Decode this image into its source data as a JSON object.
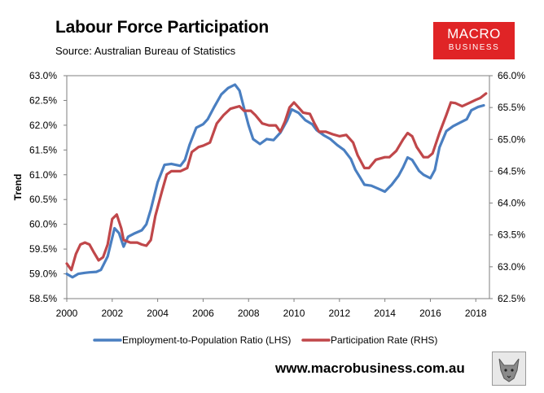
{
  "header": {
    "title": "Labour Force Participation",
    "subtitle": "Source: Australian Bureau of Statistics"
  },
  "logo": {
    "line1": "MACRO",
    "line2": "BUSINESS",
    "color": "#e02426"
  },
  "footer": {
    "url": "www.macrobusiness.com.au",
    "mascot_icon": "wolf-icon"
  },
  "colors": {
    "employment": "#4a7fc1",
    "participation": "#c0474a",
    "axis": "#7f7f7f"
  },
  "chart_data": {
    "type": "line",
    "title": "Labour Force Participation",
    "ylabel": "Trend",
    "x_ticks": [
      "2000",
      "2002",
      "2004",
      "2006",
      "2008",
      "2010",
      "2012",
      "2014",
      "2016",
      "2018"
    ],
    "xlim": [
      2000,
      2018.6
    ],
    "y_left": {
      "lim": [
        58.5,
        63.0
      ],
      "ticks": [
        "58.5%",
        "59.0%",
        "59.5%",
        "60.0%",
        "60.5%",
        "61.0%",
        "61.5%",
        "62.0%",
        "62.5%",
        "63.0%"
      ]
    },
    "y_right": {
      "lim": [
        62.5,
        66.0
      ],
      "ticks": [
        "62.5%",
        "63.0%",
        "63.5%",
        "64.0%",
        "64.5%",
        "65.0%",
        "65.5%",
        "66.0%"
      ]
    },
    "grid": false,
    "legend_position": "bottom",
    "series": [
      {
        "name": "Employment-to-Population Ratio (LHS)",
        "axis": "left",
        "points": [
          [
            2000.0,
            59.0
          ],
          [
            2000.25,
            58.93
          ],
          [
            2000.5,
            59.0
          ],
          [
            2000.8,
            59.02
          ],
          [
            2001.0,
            59.03
          ],
          [
            2001.3,
            59.04
          ],
          [
            2001.5,
            59.08
          ],
          [
            2001.8,
            59.35
          ],
          [
            2002.1,
            59.92
          ],
          [
            2002.3,
            59.82
          ],
          [
            2002.5,
            59.55
          ],
          [
            2002.7,
            59.75
          ],
          [
            2003.0,
            59.82
          ],
          [
            2003.3,
            59.88
          ],
          [
            2003.5,
            60.0
          ],
          [
            2003.7,
            60.3
          ],
          [
            2004.0,
            60.85
          ],
          [
            2004.3,
            61.2
          ],
          [
            2004.6,
            61.22
          ],
          [
            2005.0,
            61.18
          ],
          [
            2005.2,
            61.3
          ],
          [
            2005.4,
            61.6
          ],
          [
            2005.7,
            61.95
          ],
          [
            2006.0,
            62.02
          ],
          [
            2006.2,
            62.12
          ],
          [
            2006.5,
            62.38
          ],
          [
            2006.8,
            62.62
          ],
          [
            2007.1,
            62.75
          ],
          [
            2007.4,
            62.82
          ],
          [
            2007.6,
            62.7
          ],
          [
            2007.8,
            62.35
          ],
          [
            2008.0,
            62.0
          ],
          [
            2008.2,
            61.72
          ],
          [
            2008.5,
            61.62
          ],
          [
            2008.8,
            61.72
          ],
          [
            2009.1,
            61.7
          ],
          [
            2009.4,
            61.85
          ],
          [
            2009.7,
            62.1
          ],
          [
            2009.9,
            62.32
          ],
          [
            2010.2,
            62.25
          ],
          [
            2010.5,
            62.1
          ],
          [
            2010.8,
            62.02
          ],
          [
            2011.0,
            61.9
          ],
          [
            2011.3,
            61.8
          ],
          [
            2011.6,
            61.72
          ],
          [
            2011.9,
            61.6
          ],
          [
            2012.2,
            61.5
          ],
          [
            2012.5,
            61.32
          ],
          [
            2012.7,
            61.1
          ],
          [
            2012.9,
            60.95
          ],
          [
            2013.1,
            60.8
          ],
          [
            2013.4,
            60.78
          ],
          [
            2013.7,
            60.72
          ],
          [
            2014.0,
            60.66
          ],
          [
            2014.3,
            60.8
          ],
          [
            2014.6,
            60.98
          ],
          [
            2014.8,
            61.15
          ],
          [
            2015.0,
            61.35
          ],
          [
            2015.2,
            61.3
          ],
          [
            2015.5,
            61.08
          ],
          [
            2015.7,
            61.0
          ],
          [
            2016.0,
            60.93
          ],
          [
            2016.2,
            61.1
          ],
          [
            2016.4,
            61.55
          ],
          [
            2016.7,
            61.88
          ],
          [
            2017.0,
            61.98
          ],
          [
            2017.3,
            62.05
          ],
          [
            2017.6,
            62.12
          ],
          [
            2017.8,
            62.3
          ],
          [
            2018.1,
            62.37
          ],
          [
            2018.35,
            62.4
          ]
        ]
      },
      {
        "name": "Participation Rate (RHS)",
        "axis": "right",
        "points": [
          [
            2000.0,
            63.05
          ],
          [
            2000.2,
            62.95
          ],
          [
            2000.4,
            63.2
          ],
          [
            2000.6,
            63.35
          ],
          [
            2000.8,
            63.38
          ],
          [
            2001.0,
            63.35
          ],
          [
            2001.2,
            63.22
          ],
          [
            2001.4,
            63.1
          ],
          [
            2001.6,
            63.15
          ],
          [
            2001.8,
            63.35
          ],
          [
            2002.0,
            63.75
          ],
          [
            2002.2,
            63.82
          ],
          [
            2002.4,
            63.6
          ],
          [
            2002.5,
            63.42
          ],
          [
            2002.8,
            63.38
          ],
          [
            2003.1,
            63.38
          ],
          [
            2003.3,
            63.35
          ],
          [
            2003.5,
            63.33
          ],
          [
            2003.7,
            63.42
          ],
          [
            2003.9,
            63.8
          ],
          [
            2004.2,
            64.2
          ],
          [
            2004.4,
            64.45
          ],
          [
            2004.6,
            64.5
          ],
          [
            2005.0,
            64.5
          ],
          [
            2005.3,
            64.55
          ],
          [
            2005.5,
            64.8
          ],
          [
            2005.8,
            64.88
          ],
          [
            2006.0,
            64.9
          ],
          [
            2006.3,
            64.95
          ],
          [
            2006.6,
            65.25
          ],
          [
            2006.9,
            65.38
          ],
          [
            2007.2,
            65.48
          ],
          [
            2007.4,
            65.5
          ],
          [
            2007.6,
            65.52
          ],
          [
            2007.8,
            65.45
          ],
          [
            2008.1,
            65.45
          ],
          [
            2008.3,
            65.38
          ],
          [
            2008.6,
            65.25
          ],
          [
            2008.9,
            65.22
          ],
          [
            2009.2,
            65.22
          ],
          [
            2009.4,
            65.12
          ],
          [
            2009.6,
            65.28
          ],
          [
            2009.8,
            65.5
          ],
          [
            2010.0,
            65.58
          ],
          [
            2010.2,
            65.5
          ],
          [
            2010.4,
            65.42
          ],
          [
            2010.7,
            65.4
          ],
          [
            2010.9,
            65.25
          ],
          [
            2011.1,
            65.12
          ],
          [
            2011.4,
            65.12
          ],
          [
            2011.7,
            65.08
          ],
          [
            2012.0,
            65.05
          ],
          [
            2012.3,
            65.07
          ],
          [
            2012.6,
            64.95
          ],
          [
            2012.8,
            64.75
          ],
          [
            2013.1,
            64.55
          ],
          [
            2013.3,
            64.55
          ],
          [
            2013.6,
            64.68
          ],
          [
            2014.0,
            64.72
          ],
          [
            2014.2,
            64.72
          ],
          [
            2014.5,
            64.82
          ],
          [
            2014.8,
            65.0
          ],
          [
            2015.0,
            65.1
          ],
          [
            2015.2,
            65.05
          ],
          [
            2015.4,
            64.88
          ],
          [
            2015.7,
            64.72
          ],
          [
            2015.9,
            64.72
          ],
          [
            2016.1,
            64.78
          ],
          [
            2016.4,
            65.1
          ],
          [
            2016.7,
            65.38
          ],
          [
            2016.9,
            65.58
          ],
          [
            2017.1,
            65.57
          ],
          [
            2017.4,
            65.52
          ],
          [
            2017.7,
            65.57
          ],
          [
            2018.0,
            65.62
          ],
          [
            2018.2,
            65.65
          ],
          [
            2018.45,
            65.72
          ]
        ]
      }
    ]
  }
}
